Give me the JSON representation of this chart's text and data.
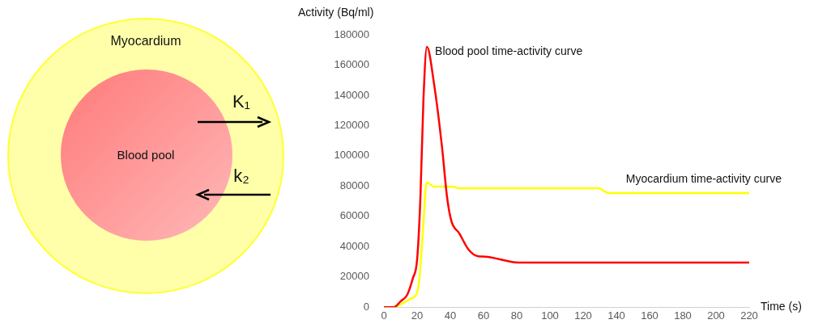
{
  "chart_data": {
    "type": "line",
    "xlabel": "Time (s)",
    "ylabel": "Activity (Bq/ml)",
    "xlim": [
      0,
      220
    ],
    "xticks": [
      0,
      20,
      40,
      60,
      80,
      100,
      120,
      140,
      160,
      180,
      200,
      220
    ],
    "ylim": [
      0,
      180000
    ],
    "yticks": [
      0,
      20000,
      40000,
      60000,
      80000,
      100000,
      120000,
      140000,
      160000,
      180000
    ],
    "grid": false,
    "legend": false,
    "marker": "none",
    "line_style": "solid",
    "series": [
      {
        "name": "Blood pool time-activity curve",
        "color": "#ff0000",
        "x": [
          0,
          6,
          10,
          14,
          17.4,
          20,
          22,
          23.8,
          25.9,
          30.2,
          35,
          38,
          40.6,
          45.4,
          51,
          56.8,
          60.8,
          80.9,
          220
        ],
        "values": [
          0,
          0,
          3800,
          8100,
          19000,
          31500,
          73000,
          137000,
          172000,
          147500,
          105700,
          73000,
          57000,
          48800,
          38000,
          33600,
          33400,
          29500,
          29500
        ]
      },
      {
        "name": "Myocardium time-activity curve",
        "color": "#ffff00",
        "x": [
          0,
          5,
          10,
          15.8,
          19.8,
          21.4,
          23.8,
          25.7,
          30.2,
          41.5,
          44.7,
          129,
          135.5,
          220
        ],
        "values": [
          0,
          0,
          1800,
          5400,
          9200,
          19000,
          55300,
          82400,
          79700,
          79700,
          78600,
          78600,
          75400,
          75400
        ]
      }
    ],
    "annotations": [
      "Myocardium",
      "Blood pool",
      "K₁",
      "k₂"
    ]
  }
}
